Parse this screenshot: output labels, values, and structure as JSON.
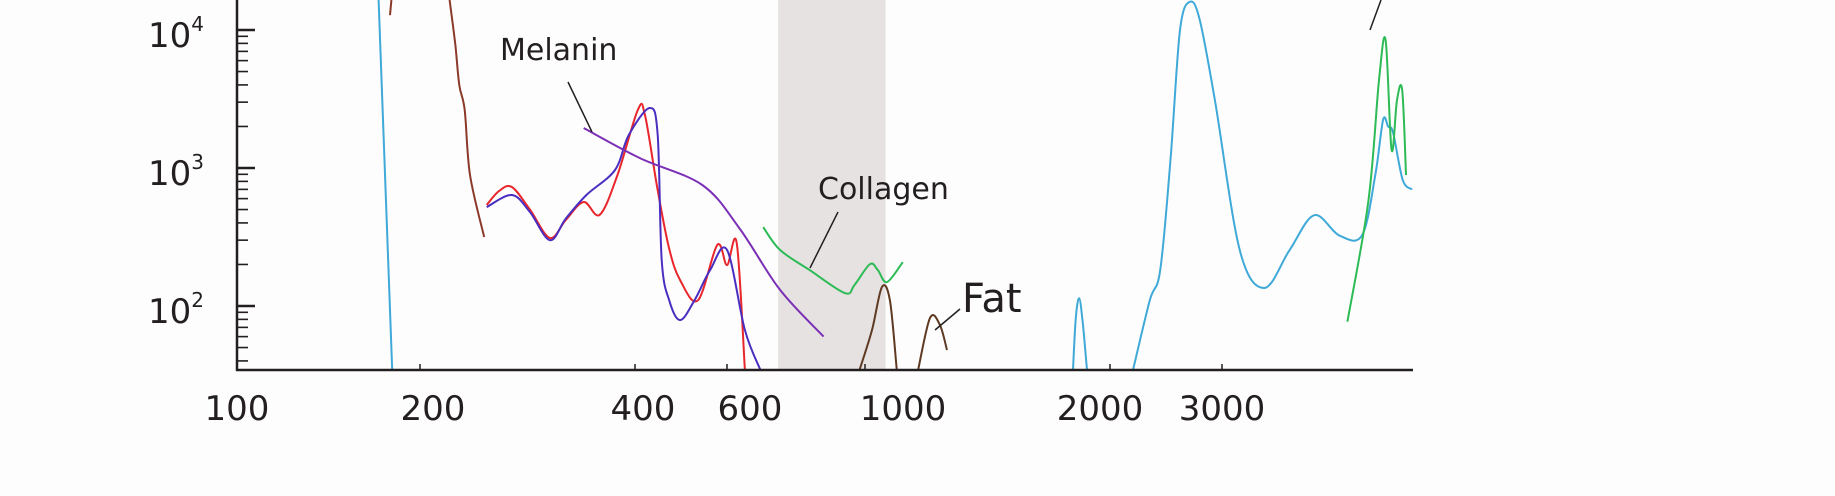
{
  "chart_data": {
    "type": "line",
    "title": "",
    "xlabel": "",
    "ylabel": "",
    "x_scale": "log",
    "y_scale": "log",
    "xlim": [
      100,
      6000
    ],
    "ylim": [
      34,
      16500
    ],
    "grid": false,
    "x_ticks": [
      {
        "value": 100,
        "label": "100"
      },
      {
        "value": 200,
        "label": "200"
      },
      {
        "value": 400,
        "label": "400"
      },
      {
        "value": 600,
        "label": "600"
      },
      {
        "value": 1000,
        "label": "1000"
      },
      {
        "value": 2000,
        "label": "2000"
      },
      {
        "value": 3000,
        "label": "3000"
      }
    ],
    "y_ticks": [
      {
        "value": 100,
        "base": "10",
        "exp": "2"
      },
      {
        "value": 1000,
        "base": "10",
        "exp": "3"
      },
      {
        "value": 10000,
        "base": "10",
        "exp": "4"
      }
    ],
    "shaded_band": {
      "x": [
        725,
        1060
      ],
      "color": "#e6e2e2"
    },
    "series": [
      {
        "color": "#3fa9d8",
        "segments": [
          [
            [
              171,
              16500
            ],
            [
              180,
              34
            ]
          ],
          [
            [
              1801,
              34
            ],
            [
              1815,
              80
            ],
            [
              1832,
              114
            ],
            [
              1850,
              80
            ],
            [
              1874,
              34
            ]
          ],
          [
            [
              2174,
              34
            ],
            [
              2310,
              110
            ],
            [
              2399,
              182
            ],
            [
              2490,
              1150
            ],
            [
              2577,
              10000
            ],
            [
              2672,
              16000
            ],
            [
              2768,
              11800
            ],
            [
              2924,
              3100
            ],
            [
              3200,
              255
            ],
            [
              3500,
              135
            ],
            [
              3840,
              255
            ],
            [
              4200,
              455
            ],
            [
              4600,
              325
            ],
            [
              5000,
              325
            ],
            [
              5250,
              900
            ],
            [
              5400,
              2230
            ],
            [
              5500,
              2000
            ],
            [
              5600,
              1800
            ],
            [
              5800,
              820
            ],
            [
              6000,
              700
            ]
          ]
        ]
      },
      {
        "color": "#8b3a2a",
        "segments": [
          [
            [
              178.5,
              12800
            ],
            [
              179.5,
              16500
            ]
          ],
          [
            [
              220,
              16500
            ],
            [
              224,
              8000
            ],
            [
              227,
              3990
            ],
            [
              231,
              2630
            ],
            [
              235,
              890
            ],
            [
              246,
              316
            ]
          ]
        ]
      },
      {
        "color": "#e8262b",
        "segments": [
          [
            [
              248,
              540
            ],
            [
              258,
              680
            ],
            [
              269,
              728
            ],
            [
              285,
              500
            ],
            [
              304,
              311
            ],
            [
              320,
              420
            ],
            [
              339,
              567
            ],
            [
              357,
              458
            ],
            [
              378,
              890
            ],
            [
              405,
              2630
            ],
            [
              418,
              2410
            ],
            [
              442,
              690
            ],
            [
              465,
              260
            ],
            [
              488,
              154
            ],
            [
              528,
              110
            ],
            [
              575,
              277
            ],
            [
              600,
              198
            ],
            [
              622,
              286
            ],
            [
              641,
              34
            ]
          ]
        ]
      },
      {
        "color": "#4a2ec0",
        "segments": [
          [
            [
              248,
              521
            ],
            [
              269,
              637
            ],
            [
              285,
              480
            ],
            [
              304,
              300
            ],
            [
              320,
              430
            ],
            [
              342,
              637
            ],
            [
              375,
              967
            ],
            [
              392,
              1730
            ],
            [
              427,
              2720
            ],
            [
              442,
              1730
            ],
            [
              450,
              215
            ],
            [
              465,
              110
            ],
            [
              488,
              79
            ],
            [
              520,
              110
            ],
            [
              557,
              182
            ],
            [
              600,
              255
            ],
            [
              641,
              67
            ],
            [
              679,
              34
            ]
          ]
        ]
      },
      {
        "name": "Melanin",
        "color": "#7b2fb5",
        "segments": [
          [
            [
              339,
              1950
            ],
            [
              408.7,
              1180
            ],
            [
              538,
              753
            ],
            [
              628,
              367
            ],
            [
              730,
              131
            ],
            [
              858,
              60
            ]
          ]
        ]
      },
      {
        "name": "Collagen",
        "color": "#2dbb55",
        "segments": [
          [
            [
              686,
              373
            ],
            [
              730,
              255
            ],
            [
              815,
              182
            ],
            [
              928,
              124
            ],
            [
              962,
              142
            ],
            [
              1014,
              201
            ],
            [
              1037,
              182
            ],
            [
              1064,
              149
            ],
            [
              1113,
              208
            ]
          ],
          [
            [
              4740,
              77
            ],
            [
              5120,
              585
            ],
            [
              5320,
              4340
            ],
            [
              5450,
              8460
            ],
            [
              5570,
              1350
            ],
            [
              5680,
              3100
            ],
            [
              5790,
              3660
            ],
            [
              5870,
              890
            ]
          ]
        ]
      },
      {
        "name": "Fat",
        "color": "#5e3a22",
        "segments": [
          [
            [
              980,
              34
            ],
            [
              1020,
              67
            ],
            [
              1049,
              137
            ],
            [
              1073,
              110
            ],
            [
              1094,
              34
            ]
          ],
          [
            [
              1162,
              34
            ],
            [
              1202,
              82
            ],
            [
              1236,
              73
            ],
            [
              1261,
              48
            ]
          ]
        ]
      }
    ],
    "annotations": [
      {
        "text": "Melanin",
        "series": "Melanin"
      },
      {
        "text": "Collagen",
        "series": "Collagen"
      },
      {
        "text": "Fat",
        "series": "Fat"
      }
    ]
  }
}
